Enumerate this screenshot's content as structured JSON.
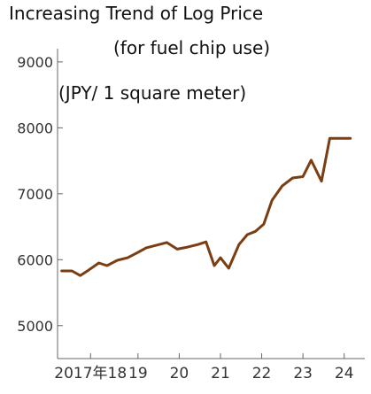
{
  "chart_data": {
    "type": "line",
    "title": "Increasing Trend of Log Price",
    "subtitle": "(for fuel chip use)",
    "ylabel": "(JPY/ 1 square meter)",
    "xlabel": "",
    "ylim": [
      4500,
      9200
    ],
    "yticks": [
      5000,
      6000,
      7000,
      8000,
      9000
    ],
    "xticks": [
      {
        "label": "2017年18",
        "x": 2017.85
      },
      {
        "label": "19",
        "x": 2019.0
      },
      {
        "label": "20",
        "x": 2020.0
      },
      {
        "label": "21",
        "x": 2021.0
      },
      {
        "label": "22",
        "x": 2022.0
      },
      {
        "label": "23",
        "x": 2023.0
      },
      {
        "label": "24",
        "x": 2024.0
      }
    ],
    "xlim": [
      2017.05,
      2024.5
    ],
    "grid": false,
    "line_color": "#7a3e12",
    "series": [
      {
        "x": [
          2017.15,
          2017.4,
          2017.6,
          2017.8,
          2018.05,
          2018.25,
          2018.5,
          2018.75,
          2019.0,
          2019.2,
          2019.45,
          2019.7,
          2019.95,
          2020.2,
          2020.45,
          2020.65,
          2020.85,
          2021.0,
          2021.2,
          2021.45,
          2021.65,
          2021.85,
          2022.05,
          2022.25,
          2022.5,
          2022.75,
          2023.0,
          2023.2,
          2023.45,
          2023.65,
          2023.9,
          2024.15
        ],
        "values": [
          5830,
          5830,
          5760,
          5840,
          5950,
          5910,
          5990,
          6030,
          6110,
          6180,
          6220,
          6260,
          6160,
          6190,
          6230,
          6270,
          5910,
          6030,
          5870,
          6230,
          6380,
          6430,
          6540,
          6900,
          7120,
          7240,
          7260,
          7510,
          7190,
          7840,
          7840,
          7840
        ]
      }
    ]
  }
}
